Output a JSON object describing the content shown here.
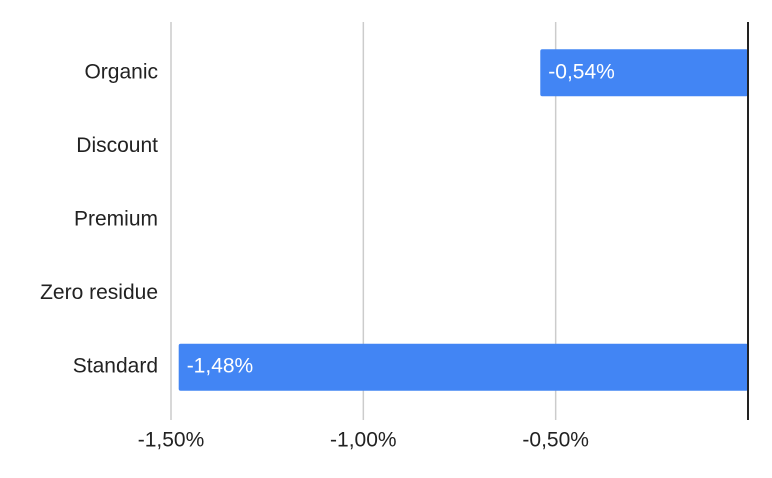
{
  "chart_data": {
    "type": "bar",
    "orientation": "horizontal",
    "categories": [
      "Organic",
      "Discount",
      "Premium",
      "Zero residue",
      "Standard"
    ],
    "values": [
      -0.54,
      null,
      null,
      null,
      -1.48
    ],
    "value_labels": [
      "-0,54%",
      null,
      null,
      null,
      "-1,48%"
    ],
    "color": "#4285f4",
    "xlim": [
      -1.5,
      0
    ],
    "xticks": [
      {
        "value": -1.5,
        "label": "-1,50%"
      },
      {
        "value": -1.0,
        "label": "-1,00%"
      },
      {
        "value": -0.5,
        "label": "-0,50%"
      }
    ],
    "grid": true
  }
}
